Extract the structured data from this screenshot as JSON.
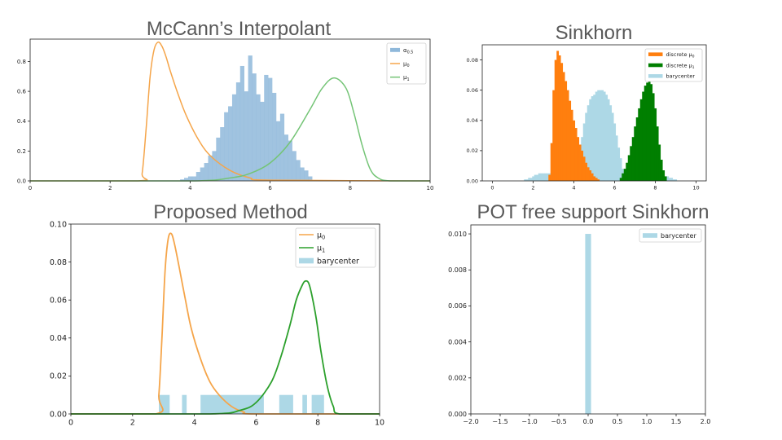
{
  "panels": [
    {
      "title": "McCann’s Interpolant",
      "colors": {
        "mu0": "#f5a54a",
        "mu1": "#74c476",
        "hist": "#8fb8da"
      },
      "chart_data": {
        "type": "area",
        "xlim": [
          0,
          10
        ],
        "ylim": [
          0,
          0.95
        ],
        "xticks": [
          0,
          2,
          4,
          6,
          8,
          10
        ],
        "yticks": [
          0.0,
          0.2,
          0.4,
          0.6,
          0.8
        ],
        "xtick_labels": [
          "0",
          "2",
          "4",
          "6",
          "8",
          "10"
        ],
        "ytick_labels": [
          "0.0",
          "0.2",
          "0.4",
          "0.6",
          "0.8"
        ],
        "legend_position": "top-right",
        "legend": [
          "α0.5",
          "μ0",
          "μ1"
        ],
        "series": [
          {
            "name": "μ0",
            "kind": "line",
            "x": [
              0,
              2.7,
              2.8,
              2.9,
              3.0,
              3.1,
              3.2,
              3.3,
              3.4,
              3.5,
              3.7,
              3.9,
              4.2,
              4.5,
              5.0,
              5.5,
              6.0,
              10
            ],
            "y": [
              0,
              0,
              0.05,
              0.35,
              0.7,
              0.88,
              0.93,
              0.9,
              0.83,
              0.74,
              0.58,
              0.44,
              0.28,
              0.17,
              0.07,
              0.02,
              0.005,
              0
            ]
          },
          {
            "name": "μ1",
            "kind": "line",
            "x": [
              0,
              4.0,
              5.0,
              5.5,
              6.0,
              6.5,
              7.0,
              7.3,
              7.6,
              7.9,
              8.1,
              8.3,
              8.5,
              8.7,
              9.0,
              10
            ],
            "y": [
              0,
              0,
              0.02,
              0.05,
              0.12,
              0.26,
              0.48,
              0.62,
              0.69,
              0.62,
              0.45,
              0.24,
              0.08,
              0.02,
              0,
              0
            ]
          },
          {
            "name": "α0.5",
            "kind": "hist",
            "bin_width": 0.1,
            "x": [
              3.8,
              3.9,
              4.0,
              4.1,
              4.2,
              4.3,
              4.4,
              4.5,
              4.6,
              4.7,
              4.8,
              4.9,
              5.0,
              5.1,
              5.2,
              5.3,
              5.4,
              5.5,
              5.6,
              5.7,
              5.8,
              5.9,
              6.0,
              6.1,
              6.2,
              6.3,
              6.4,
              6.5,
              6.6,
              6.7,
              6.8,
              6.9,
              7.0
            ],
            "y": [
              0.01,
              0.02,
              0.03,
              0.03,
              0.06,
              0.09,
              0.12,
              0.17,
              0.2,
              0.29,
              0.36,
              0.46,
              0.5,
              0.58,
              0.66,
              0.77,
              0.6,
              0.84,
              0.72,
              0.58,
              0.53,
              0.71,
              0.69,
              0.59,
              0.4,
              0.45,
              0.31,
              0.27,
              0.2,
              0.14,
              0.09,
              0.07,
              0.03
            ]
          }
        ]
      }
    },
    {
      "title": "Sinkhorn",
      "colors": {
        "mu0": "#ff7f0e",
        "mu1": "#007f00",
        "bary": "#add8e6"
      },
      "chart_data": {
        "type": "bar",
        "xlim": [
          -0.5,
          10.5
        ],
        "ylim": [
          0,
          0.09
        ],
        "xticks": [
          0,
          2,
          4,
          6,
          8,
          10
        ],
        "yticks": [
          0.0,
          0.02,
          0.04,
          0.06,
          0.08
        ],
        "xtick_labels": [
          "0",
          "2",
          "4",
          "6",
          "8",
          "10"
        ],
        "ytick_labels": [
          "0.00",
          "0.02",
          "0.04",
          "0.06",
          "0.08"
        ],
        "legend_position": "top-right",
        "legend": [
          "discrete μ0",
          "discrete μ1",
          "barycenter"
        ],
        "series": [
          {
            "name": "barycenter",
            "kind": "hist",
            "bin_width": 0.1,
            "x": [
              1.6,
              1.7,
              1.8,
              1.9,
              2.0,
              2.1,
              2.2,
              2.3,
              2.4,
              2.5,
              2.6,
              2.7,
              2.8,
              2.9,
              3.0,
              3.1,
              3.2,
              3.3,
              3.4,
              3.5,
              3.6,
              3.7,
              3.8,
              3.9,
              4.0,
              4.1,
              4.2,
              4.3,
              4.4,
              4.5,
              4.6,
              4.7,
              4.8,
              4.9,
              5.0,
              5.1,
              5.2,
              5.3,
              5.4,
              5.5,
              5.6,
              5.7,
              5.8,
              5.9,
              6.0,
              6.1,
              6.2,
              6.3,
              6.4,
              6.5,
              6.6,
              6.7,
              6.8,
              6.9,
              7.0,
              7.1,
              7.2,
              7.3,
              7.4,
              7.5,
              7.6,
              7.7,
              7.8,
              7.9,
              8.0,
              8.1,
              8.2,
              8.3,
              8.4,
              8.5,
              8.6,
              8.7,
              8.8,
              8.9,
              9.0
            ],
            "y": [
              0.001,
              0.001,
              0.002,
              0.002,
              0.003,
              0.004,
              0.004,
              0.005,
              0.005,
              0.005,
              0.005,
              0.005,
              0.005,
              0.005,
              0.005,
              0.005,
              0.005,
              0.005,
              0.005,
              0.005,
              0.005,
              0.005,
              0.005,
              0.005,
              0.005,
              0.006,
              0.012,
              0.02,
              0.029,
              0.038,
              0.045,
              0.05,
              0.054,
              0.056,
              0.057,
              0.059,
              0.06,
              0.06,
              0.06,
              0.059,
              0.057,
              0.054,
              0.05,
              0.045,
              0.038,
              0.03,
              0.022,
              0.015,
              0.008,
              0.004,
              0.002,
              0.002,
              0.002,
              0.002,
              0.002,
              0.002,
              0.002,
              0.002,
              0.002,
              0.002,
              0.002,
              0.002,
              0.002,
              0.002,
              0.002,
              0.003,
              0.004,
              0.004,
              0.004,
              0.003,
              0.003,
              0.002,
              0.002,
              0.001,
              0.001
            ]
          },
          {
            "name": "discrete μ0",
            "kind": "hist",
            "bin_width": 0.1,
            "x": [
              2.8,
              2.9,
              3.0,
              3.1,
              3.2,
              3.3,
              3.4,
              3.5,
              3.6,
              3.7,
              3.8,
              3.9,
              4.0,
              4.1,
              4.2,
              4.3,
              4.4,
              4.5,
              4.6,
              4.7,
              4.8,
              4.9,
              5.0,
              5.1,
              5.2
            ],
            "y": [
              0.004,
              0.025,
              0.06,
              0.08,
              0.086,
              0.083,
              0.078,
              0.072,
              0.066,
              0.06,
              0.053,
              0.047,
              0.04,
              0.035,
              0.029,
              0.024,
              0.02,
              0.016,
              0.012,
              0.009,
              0.007,
              0.005,
              0.003,
              0.002,
              0.001
            ]
          },
          {
            "name": "discrete μ1",
            "kind": "hist",
            "bin_width": 0.1,
            "x": [
              6.3,
              6.4,
              6.5,
              6.6,
              6.7,
              6.8,
              6.9,
              7.0,
              7.1,
              7.2,
              7.3,
              7.4,
              7.5,
              7.6,
              7.7,
              7.8,
              7.9,
              8.0,
              8.1,
              8.2,
              8.3,
              8.4,
              8.5
            ],
            "y": [
              0.002,
              0.005,
              0.008,
              0.012,
              0.017,
              0.023,
              0.029,
              0.036,
              0.042,
              0.048,
              0.054,
              0.059,
              0.063,
              0.065,
              0.066,
              0.064,
              0.058,
              0.048,
              0.036,
              0.024,
              0.014,
              0.007,
              0.003
            ]
          }
        ]
      }
    },
    {
      "title": "Proposed Method",
      "colors": {
        "mu0": "#f5a54a",
        "mu1": "#2ca02c",
        "bary": "#add8e6"
      },
      "chart_data": {
        "type": "line",
        "xlim": [
          0,
          10
        ],
        "ylim": [
          0,
          0.1
        ],
        "xticks": [
          0,
          2,
          4,
          6,
          8,
          10
        ],
        "yticks": [
          0.0,
          0.02,
          0.04,
          0.06,
          0.08,
          0.1
        ],
        "xtick_labels": [
          "0",
          "2",
          "4",
          "6",
          "8",
          "10"
        ],
        "ytick_labels": [
          "0.00",
          "0.02",
          "0.04",
          "0.06",
          "0.08",
          "0.10"
        ],
        "legend_position": "top-right",
        "legend": [
          "μ0",
          "μ1",
          "barycenter"
        ],
        "series": [
          {
            "name": "μ0",
            "kind": "line",
            "x": [
              0,
              2.75,
              2.85,
              2.95,
              3.05,
              3.15,
              3.25,
              3.35,
              3.5,
              3.7,
              3.9,
              4.2,
              4.5,
              4.8,
              5.2,
              5.6,
              6.0,
              10
            ],
            "y": [
              0,
              0,
              0.01,
              0.04,
              0.075,
              0.092,
              0.095,
              0.09,
              0.078,
              0.061,
              0.045,
              0.029,
              0.017,
              0.01,
              0.004,
              0.001,
              0,
              0
            ]
          },
          {
            "name": "μ1",
            "kind": "line",
            "x": [
              0,
              4.5,
              5.5,
              6.0,
              6.5,
              6.8,
              7.1,
              7.3,
              7.5,
              7.6,
              7.7,
              7.8,
              7.95,
              8.1,
              8.3,
              8.5,
              8.7,
              10
            ],
            "y": [
              0,
              0,
              0.002,
              0.006,
              0.017,
              0.03,
              0.047,
              0.06,
              0.068,
              0.07,
              0.069,
              0.063,
              0.05,
              0.033,
              0.015,
              0.004,
              0,
              0
            ]
          },
          {
            "name": "barycenter",
            "kind": "bar_segments",
            "height": 0.01,
            "segments": [
              [
                2.85,
                3.2
              ],
              [
                3.6,
                3.75
              ],
              [
                4.2,
                6.25
              ],
              [
                6.75,
                7.2
              ],
              [
                7.5,
                7.65
              ],
              [
                7.8,
                8.2
              ]
            ]
          }
        ]
      }
    },
    {
      "title": "POT free support Sinkhorn",
      "colors": {
        "bary": "#add8e6"
      },
      "chart_data": {
        "type": "bar",
        "xlim": [
          -2,
          2
        ],
        "ylim": [
          0,
          0.0105
        ],
        "xticks": [
          -2,
          -1.5,
          -1,
          -0.5,
          0,
          0.5,
          1,
          1.5,
          2
        ],
        "yticks": [
          0.0,
          0.002,
          0.004,
          0.006,
          0.008,
          0.01
        ],
        "xtick_labels": [
          "−2.0",
          "−1.5",
          "−1.0",
          "−0.5",
          "0.0",
          "0.5",
          "1.0",
          "1.5",
          "2.0"
        ],
        "ytick_labels": [
          "0.000",
          "0.002",
          "0.004",
          "0.006",
          "0.008",
          "0.010"
        ],
        "legend_position": "top-right",
        "legend": [
          "barycenter"
        ],
        "series": [
          {
            "name": "barycenter",
            "kind": "bar_segments",
            "height": 0.01,
            "segments": [
              [
                -0.05,
                0.05
              ]
            ]
          }
        ]
      }
    }
  ]
}
